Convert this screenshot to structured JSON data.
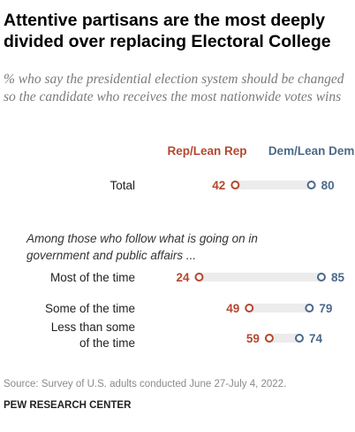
{
  "title": "Attentive partisans are the most deeply divided over replacing Electoral College",
  "subtitle": "% who say the presidential election system should be changed so the candidate who receives the most nationwide votes wins",
  "note": "Among those who follow what is going on in government and public affairs ...",
  "source": "Source: Survey of U.S. adults conducted June 27-July 4, 2022.",
  "credit": "PEW RESEARCH CENTER",
  "colors": {
    "rep": "#b5472f",
    "dem": "#4a6a8a",
    "track": "#ececec"
  },
  "chart_data": {
    "type": "dot",
    "title": "Attentive partisans are the most deeply divided over replacing Electoral College",
    "xlim": [
      0,
      100
    ],
    "grid": false,
    "legend": "top",
    "series": [
      {
        "name": "Rep/Lean Rep",
        "color": "#b5472f"
      },
      {
        "name": "Dem/Lean Dem",
        "color": "#4a6a8a"
      }
    ],
    "rows": [
      {
        "label": [
          "Total"
        ],
        "rep": 42,
        "dem": 80
      },
      {
        "label": [
          "Most of the time"
        ],
        "rep": 24,
        "dem": 85
      },
      {
        "label": [
          "Some of the time"
        ],
        "rep": 49,
        "dem": 79
      },
      {
        "label": [
          "Less than some",
          "of the time"
        ],
        "rep": 59,
        "dem": 74
      }
    ]
  }
}
